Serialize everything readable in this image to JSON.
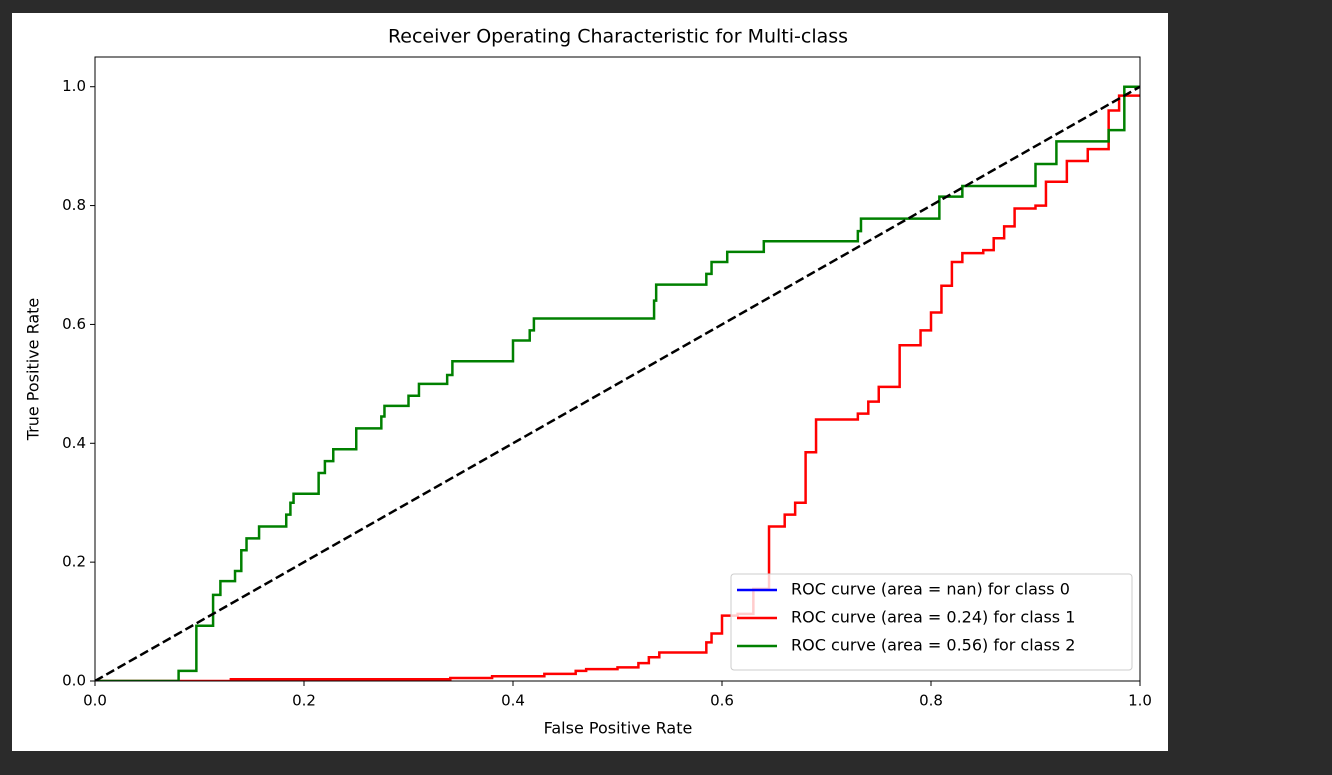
{
  "chart_data": {
    "type": "line",
    "title": "Receiver Operating Characteristic for Multi-class",
    "xlabel": "False Positive Rate",
    "ylabel": "True Positive Rate",
    "xlim": [
      0,
      1
    ],
    "ylim": [
      0,
      1.05
    ],
    "xticks": [
      {
        "value": 0,
        "label": "0.0"
      },
      0.2,
      0.4,
      0.6,
      0.8,
      {
        "value": 1,
        "label": "1.0"
      }
    ],
    "yticks": [
      {
        "value": 0,
        "label": "0.0"
      },
      0.2,
      0.4,
      0.6,
      0.8,
      {
        "value": 1,
        "label": "1.0"
      }
    ],
    "legend": "lower right",
    "reference_line": {
      "x": [
        0,
        1
      ],
      "values": [
        0,
        1
      ],
      "color": "#000000",
      "dashed": true
    },
    "series": [
      {
        "name": "ROC curve (area = nan) for class 0",
        "color": "#0000ff",
        "x": [],
        "values": []
      },
      {
        "name": "ROC curve (area = 0.24) for class 1",
        "color": "#ff0000",
        "x": [
          0,
          0.13,
          0.13,
          0.34,
          0.34,
          0.38,
          0.38,
          0.43,
          0.43,
          0.46,
          0.46,
          0.47,
          0.47,
          0.5,
          0.5,
          0.52,
          0.52,
          0.53,
          0.53,
          0.54,
          0.54,
          0.585,
          0.585,
          0.59,
          0.59,
          0.6,
          0.6,
          0.615,
          0.615,
          0.63,
          0.63,
          0.645,
          0.645,
          0.645,
          0.66,
          0.66,
          0.67,
          0.67,
          0.68,
          0.68,
          0.69,
          0.69,
          0.73,
          0.73,
          0.74,
          0.74,
          0.75,
          0.75,
          0.77,
          0.77,
          0.79,
          0.79,
          0.8,
          0.8,
          0.81,
          0.81,
          0.82,
          0.82,
          0.83,
          0.83,
          0.85,
          0.85,
          0.86,
          0.86,
          0.87,
          0.87,
          0.88,
          0.88,
          0.9,
          0.9,
          0.91,
          0.91,
          0.93,
          0.93,
          0.95,
          0.95,
          0.97,
          0.97,
          0.98,
          0.98,
          1.0
        ],
        "values": [
          0,
          0,
          0.003,
          0.003,
          0.005,
          0.005,
          0.008,
          0.008,
          0.012,
          0.012,
          0.017,
          0.017,
          0.02,
          0.02,
          0.023,
          0.023,
          0.03,
          0.03,
          0.04,
          0.04,
          0.048,
          0.048,
          0.065,
          0.065,
          0.08,
          0.08,
          0.11,
          0.11,
          0.113,
          0.113,
          0.155,
          0.155,
          0.16,
          0.26,
          0.26,
          0.28,
          0.28,
          0.3,
          0.3,
          0.385,
          0.385,
          0.44,
          0.44,
          0.45,
          0.45,
          0.47,
          0.47,
          0.495,
          0.495,
          0.565,
          0.565,
          0.59,
          0.59,
          0.62,
          0.62,
          0.665,
          0.665,
          0.705,
          0.705,
          0.72,
          0.72,
          0.725,
          0.725,
          0.745,
          0.745,
          0.765,
          0.765,
          0.795,
          0.795,
          0.8,
          0.8,
          0.84,
          0.84,
          0.875,
          0.875,
          0.895,
          0.895,
          0.96,
          0.96,
          0.985,
          0.985
        ]
      },
      {
        "name": "ROC curve (area = 0.56) for class 2",
        "color": "#008000",
        "x": [
          0,
          0.08,
          0.08,
          0.097,
          0.097,
          0.113,
          0.113,
          0.12,
          0.12,
          0.134,
          0.134,
          0.14,
          0.14,
          0.145,
          0.145,
          0.157,
          0.157,
          0.183,
          0.183,
          0.187,
          0.187,
          0.19,
          0.19,
          0.214,
          0.214,
          0.22,
          0.22,
          0.228,
          0.228,
          0.25,
          0.25,
          0.274,
          0.274,
          0.277,
          0.277,
          0.3,
          0.3,
          0.31,
          0.31,
          0.337,
          0.337,
          0.342,
          0.342,
          0.4,
          0.4,
          0.416,
          0.416,
          0.42,
          0.42,
          0.535,
          0.535,
          0.537,
          0.537,
          0.585,
          0.585,
          0.59,
          0.59,
          0.605,
          0.605,
          0.64,
          0.64,
          0.73,
          0.73,
          0.733,
          0.733,
          0.808,
          0.808,
          0.83,
          0.83,
          0.9,
          0.9,
          0.92,
          0.92,
          0.97,
          0.97,
          0.985,
          0.985,
          1.0
        ],
        "values": [
          0,
          0,
          0.017,
          0.017,
          0.093,
          0.093,
          0.145,
          0.145,
          0.168,
          0.168,
          0.185,
          0.185,
          0.22,
          0.22,
          0.24,
          0.24,
          0.26,
          0.26,
          0.28,
          0.28,
          0.3,
          0.3,
          0.315,
          0.315,
          0.35,
          0.35,
          0.37,
          0.37,
          0.39,
          0.39,
          0.425,
          0.425,
          0.445,
          0.445,
          0.463,
          0.463,
          0.48,
          0.48,
          0.5,
          0.5,
          0.515,
          0.515,
          0.538,
          0.538,
          0.573,
          0.573,
          0.59,
          0.59,
          0.61,
          0.61,
          0.64,
          0.64,
          0.667,
          0.667,
          0.685,
          0.685,
          0.705,
          0.705,
          0.722,
          0.722,
          0.74,
          0.74,
          0.757,
          0.757,
          0.778,
          0.778,
          0.815,
          0.815,
          0.833,
          0.833,
          0.87,
          0.87,
          0.908,
          0.908,
          0.927,
          0.927,
          1.0,
          1.0
        ]
      }
    ]
  }
}
